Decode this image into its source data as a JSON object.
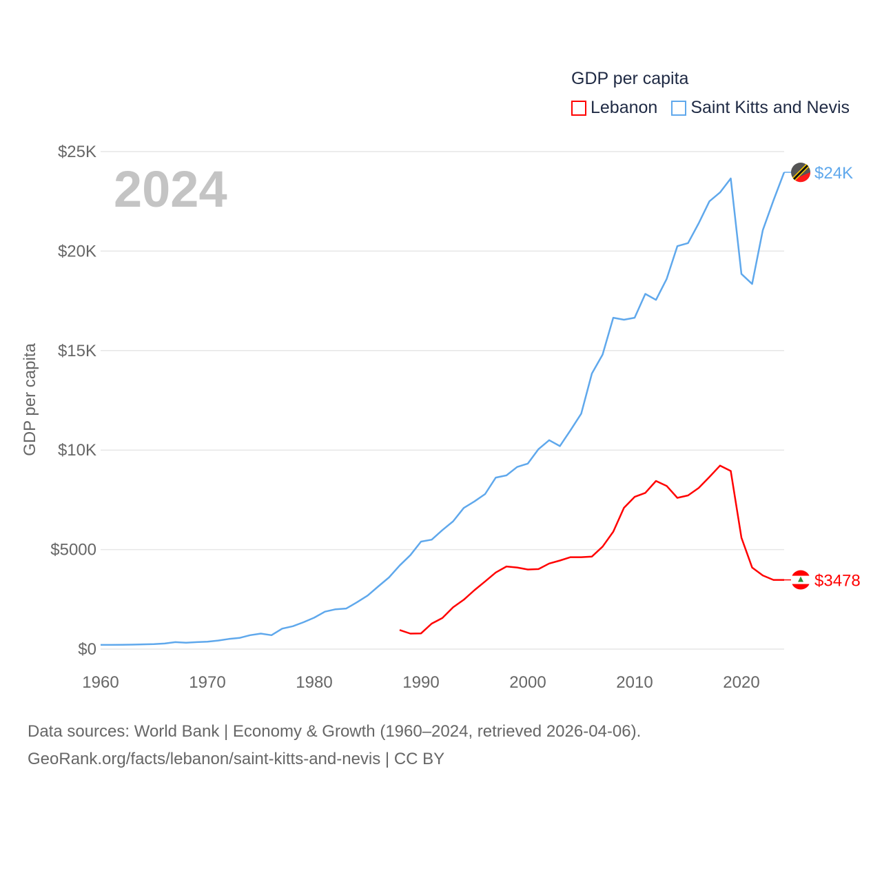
{
  "chart_data": {
    "type": "line",
    "title": "GDP per capita",
    "year_label": "2024",
    "xlabel": "",
    "ylabel": "GDP per capita",
    "xlim": [
      1960,
      2024
    ],
    "ylim": [
      0,
      25000
    ],
    "grid": true,
    "legend_placement": "top-right",
    "x_ticks": [
      "1960",
      "1970",
      "1980",
      "1990",
      "2000",
      "2010",
      "2020"
    ],
    "x_tick_values": [
      1960,
      1970,
      1980,
      1990,
      2000,
      2010,
      2020
    ],
    "y_ticks": [
      "$0",
      "$5000",
      "$10K",
      "$15K",
      "$20K",
      "$25K"
    ],
    "y_tick_values": [
      0,
      5000,
      10000,
      15000,
      20000,
      25000
    ],
    "series": [
      {
        "name": "Lebanon",
        "color": "#ff0000",
        "end_label": "$3478",
        "start_year": 1988,
        "values": [
          960,
          780,
          790,
          1280,
          1560,
          2100,
          2480,
          2960,
          3400,
          3850,
          4150,
          4100,
          4000,
          4020,
          4300,
          4450,
          4620,
          4620,
          4650,
          5150,
          5900,
          7100,
          7650,
          7850,
          8450,
          8200,
          7600,
          7720,
          8100,
          8650,
          9220,
          8950,
          5600,
          4100,
          3700,
          3478,
          3478
        ]
      },
      {
        "name": "Saint Kitts and Nevis",
        "color": "#5fa8ec",
        "end_label": "$24K",
        "start_year": 1960,
        "values": [
          210,
          210,
          215,
          225,
          240,
          250,
          280,
          350,
          320,
          350,
          370,
          430,
          510,
          560,
          700,
          780,
          700,
          1030,
          1150,
          1350,
          1580,
          1880,
          2000,
          2040,
          2350,
          2690,
          3150,
          3600,
          4200,
          4720,
          5400,
          5500,
          5980,
          6420,
          7090,
          7420,
          7790,
          8620,
          8730,
          9150,
          9320,
          10050,
          10500,
          10200,
          11000,
          11830,
          13850,
          14800,
          16650,
          16550,
          16650,
          17850,
          17550,
          18600,
          20250,
          20400,
          21400,
          22500,
          22950,
          23650,
          18850,
          18350,
          21050,
          22550,
          23960
        ]
      }
    ]
  },
  "footer": {
    "line1": "Data sources: World Bank | Economy & Growth (1960–2024, retrieved 2026-04-06).",
    "line2": "GeoRank.org/facts/lebanon/saint-kitts-and-nevis | CC BY"
  }
}
